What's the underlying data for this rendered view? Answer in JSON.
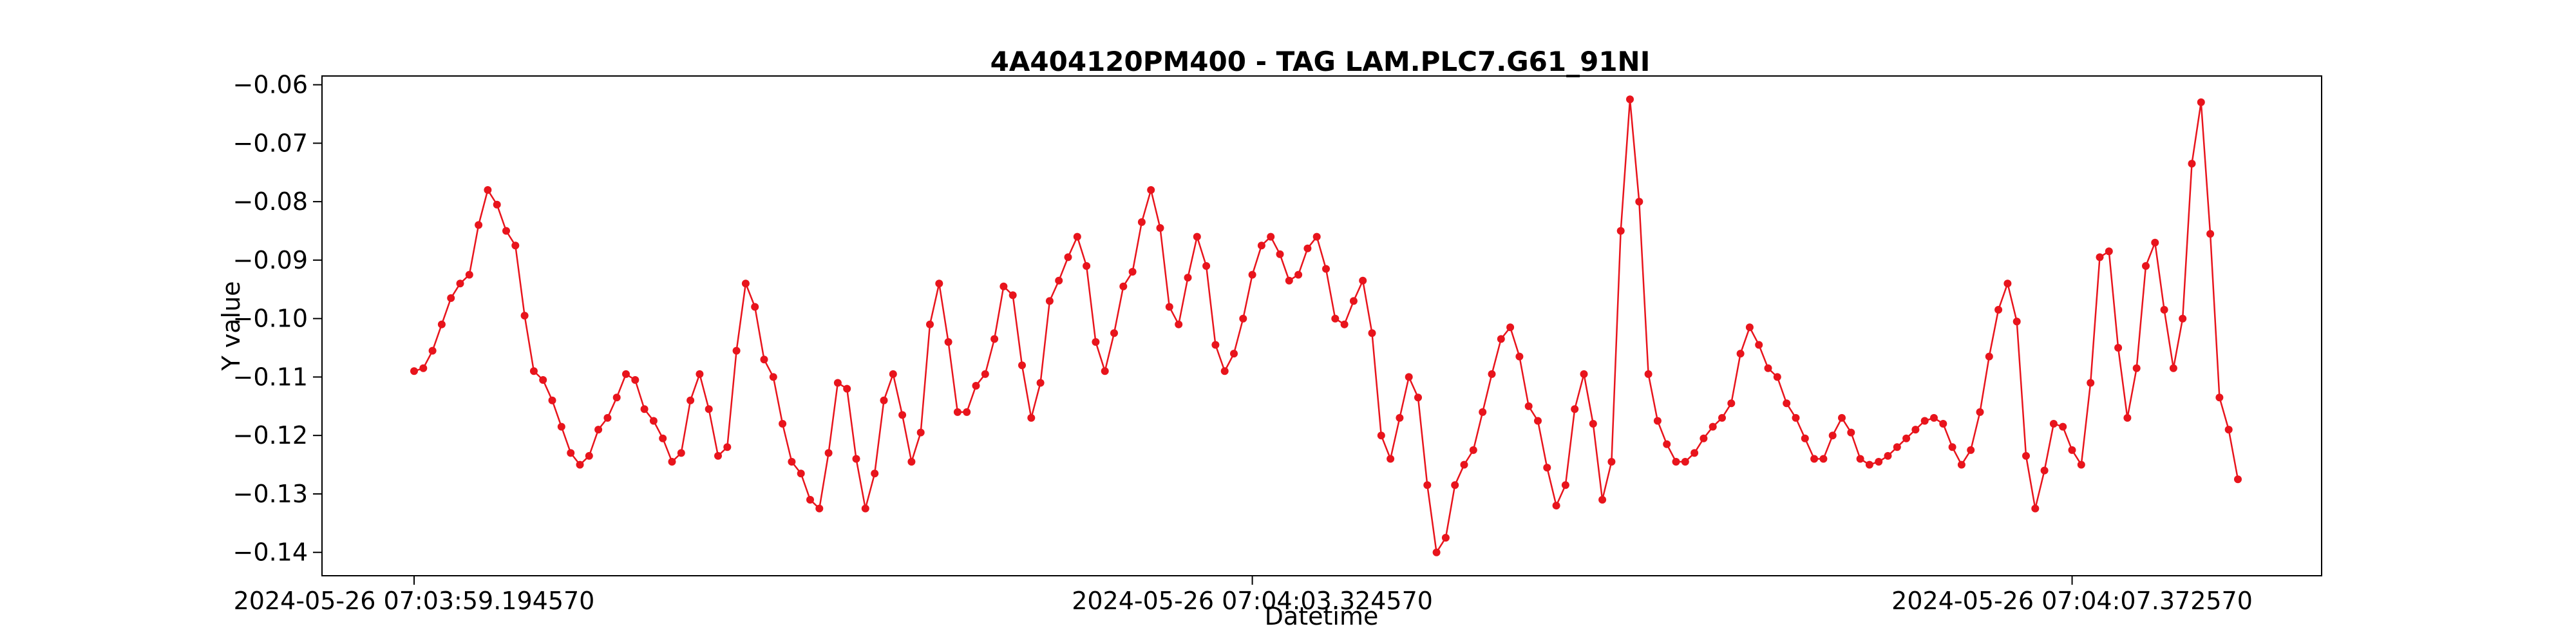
{
  "chart_data": {
    "type": "line",
    "title": "4A404120PM400 - TAG LAM.PLC7.G61_91NI",
    "xlabel": "Datetime",
    "ylabel": "Y value",
    "ylim": [
      -0.144,
      -0.0585
    ],
    "yticks": [
      -0.06,
      -0.07,
      -0.08,
      -0.09,
      -0.1,
      -0.11,
      -0.12,
      -0.13,
      -0.14
    ],
    "ytick_labels": [
      "−0.06",
      "−0.07",
      "−0.08",
      "−0.09",
      "−0.10",
      "−0.11",
      "−0.12",
      "−0.13",
      "−0.14"
    ],
    "x_tick_labels": [
      "2024-05-26 07:03:59.194570",
      "2024-05-26 07:04:03.324570",
      "2024-05-26 07:04:07.372570"
    ],
    "x_tick_indices": [
      0,
      91,
      180
    ],
    "grid": false,
    "color": "#e8141c",
    "series": [
      {
        "values": [
          -0.109,
          -0.1085,
          -0.1055,
          -0.101,
          -0.0965,
          -0.094,
          -0.0925,
          -0.084,
          -0.078,
          -0.0805,
          -0.085,
          -0.0875,
          -0.0995,
          -0.109,
          -0.1105,
          -0.114,
          -0.1185,
          -0.123,
          -0.125,
          -0.1235,
          -0.119,
          -0.117,
          -0.1135,
          -0.1095,
          -0.1105,
          -0.1155,
          -0.1175,
          -0.1205,
          -0.1245,
          -0.123,
          -0.114,
          -0.1095,
          -0.1155,
          -0.1235,
          -0.122,
          -0.1055,
          -0.094,
          -0.098,
          -0.107,
          -0.11,
          -0.118,
          -0.1245,
          -0.1265,
          -0.131,
          -0.1325,
          -0.123,
          -0.111,
          -0.112,
          -0.124,
          -0.1325,
          -0.1265,
          -0.114,
          -0.1095,
          -0.1165,
          -0.1245,
          -0.1195,
          -0.101,
          -0.094,
          -0.104,
          -0.116,
          -0.116,
          -0.1115,
          -0.1095,
          -0.1035,
          -0.0945,
          -0.096,
          -0.108,
          -0.117,
          -0.111,
          -0.097,
          -0.0935,
          -0.0895,
          -0.086,
          -0.091,
          -0.104,
          -0.109,
          -0.1025,
          -0.0945,
          -0.092,
          -0.0835,
          -0.078,
          -0.0845,
          -0.098,
          -0.101,
          -0.093,
          -0.086,
          -0.091,
          -0.1045,
          -0.109,
          -0.106,
          -0.1,
          -0.0925,
          -0.0875,
          -0.086,
          -0.089,
          -0.0935,
          -0.0925,
          -0.088,
          -0.086,
          -0.0915,
          -0.1,
          -0.101,
          -0.097,
          -0.0935,
          -0.1025,
          -0.12,
          -0.124,
          -0.117,
          -0.11,
          -0.1135,
          -0.1285,
          -0.14,
          -0.1375,
          -0.1285,
          -0.125,
          -0.1225,
          -0.116,
          -0.1095,
          -0.1035,
          -0.1015,
          -0.1065,
          -0.115,
          -0.1175,
          -0.1255,
          -0.132,
          -0.1285,
          -0.1155,
          -0.1095,
          -0.118,
          -0.131,
          -0.1245,
          -0.085,
          -0.0625,
          -0.08,
          -0.1095,
          -0.1175,
          -0.1215,
          -0.1245,
          -0.1245,
          -0.123,
          -0.1205,
          -0.1185,
          -0.117,
          -0.1145,
          -0.106,
          -0.1015,
          -0.1045,
          -0.1085,
          -0.11,
          -0.1145,
          -0.117,
          -0.1205,
          -0.124,
          -0.124,
          -0.12,
          -0.117,
          -0.1195,
          -0.124,
          -0.125,
          -0.1245,
          -0.1235,
          -0.122,
          -0.1205,
          -0.119,
          -0.1175,
          -0.117,
          -0.118,
          -0.122,
          -0.125,
          -0.1225,
          -0.116,
          -0.1065,
          -0.0985,
          -0.094,
          -0.1005,
          -0.1235,
          -0.1325,
          -0.126,
          -0.118,
          -0.1185,
          -0.1225,
          -0.125,
          -0.111,
          -0.0895,
          -0.0885,
          -0.105,
          -0.117,
          -0.1085,
          -0.091,
          -0.087,
          -0.0985,
          -0.1085,
          -0.1,
          -0.0735,
          -0.063,
          -0.0855,
          -0.1135,
          -0.119,
          -0.1275
        ]
      }
    ]
  }
}
